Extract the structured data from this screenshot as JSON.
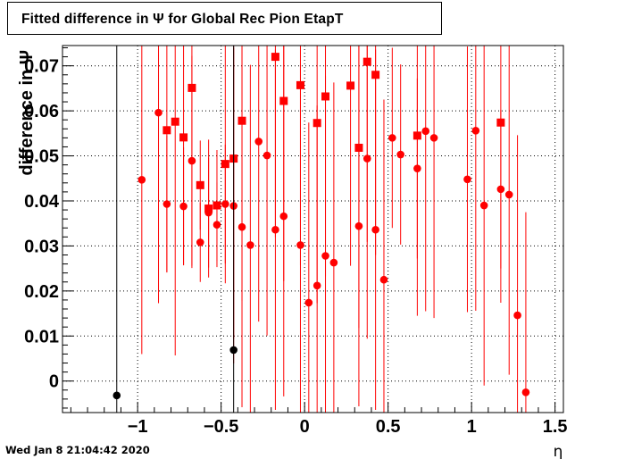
{
  "chart_data": {
    "type": "scatter",
    "title": "Fitted difference in  Ψ  for Global Rec Pion EtapT",
    "xlabel": "η",
    "ylabel": "difference in Ψ",
    "xlim": [
      -1.45,
      1.55
    ],
    "ylim": [
      -0.007,
      0.0745
    ],
    "x_ticks": [
      -1,
      -0.5,
      0,
      0.5,
      1,
      1.5
    ],
    "x_tick_labels": [
      "−1",
      "−0.5",
      "0",
      "0.5",
      "1",
      "1.5"
    ],
    "y_ticks": [
      0,
      0.01,
      0.02,
      0.03,
      0.04,
      0.05,
      0.06,
      0.07
    ],
    "y_tick_labels": [
      "0",
      "0.01",
      "0.02",
      "0.03",
      "0.04",
      "0.05",
      "0.06",
      "0.07"
    ],
    "grid": true,
    "series": [
      {
        "marker": "circle",
        "color": "#ff0000",
        "points": [
          {
            "x": -0.975,
            "y": 0.0447,
            "err": 0.0387
          },
          {
            "x": -0.875,
            "y": 0.0596,
            "err": 0.0423
          },
          {
            "x": -0.825,
            "y": 0.0393,
            "err": 0.0152
          },
          {
            "x": -0.725,
            "y": 0.0388,
            "err": 0.0131
          },
          {
            "x": -0.675,
            "y": 0.0489,
            "err": 0.0233
          },
          {
            "x": -0.625,
            "y": 0.0308,
            "err": 0.0088
          },
          {
            "x": -0.575,
            "y": 0.0374,
            "err": 0.0122
          },
          {
            "x": -0.525,
            "y": 0.0347,
            "err": 0.0094
          },
          {
            "x": -0.475,
            "y": 0.0393,
            "err": 0.0132
          },
          {
            "x": -0.425,
            "y": 0.0389,
            "err": 0.035
          },
          {
            "x": -0.375,
            "y": 0.0342,
            "err": 0.04
          },
          {
            "x": -0.325,
            "y": 0.0302,
            "err": 0.04
          },
          {
            "x": -0.275,
            "y": 0.0532,
            "err": 0.04
          },
          {
            "x": -0.225,
            "y": 0.0501,
            "err": 0.04
          },
          {
            "x": -0.175,
            "y": 0.0336,
            "err": 0.04
          },
          {
            "x": -0.125,
            "y": 0.0366,
            "err": 0.04
          },
          {
            "x": -0.025,
            "y": 0.0302,
            "err": 0.04
          },
          {
            "x": 0.025,
            "y": 0.0174,
            "err": 0.04
          },
          {
            "x": 0.075,
            "y": 0.0212,
            "err": 0.04
          },
          {
            "x": 0.125,
            "y": 0.0278,
            "err": 0.04
          },
          {
            "x": 0.175,
            "y": 0.0263,
            "err": 0.04
          },
          {
            "x": 0.325,
            "y": 0.0344,
            "err": 0.04
          },
          {
            "x": 0.375,
            "y": 0.0494,
            "err": 0.04
          },
          {
            "x": 0.425,
            "y": 0.0336,
            "err": 0.04
          },
          {
            "x": 0.475,
            "y": 0.0225,
            "err": 0.04
          },
          {
            "x": 0.525,
            "y": 0.054,
            "err": 0.02
          },
          {
            "x": 0.575,
            "y": 0.0503,
            "err": 0.02
          },
          {
            "x": 0.675,
            "y": 0.0472,
            "err": 0.02
          },
          {
            "x": 0.725,
            "y": 0.0555,
            "err": 0.04
          },
          {
            "x": 0.775,
            "y": 0.054,
            "err": 0.04
          },
          {
            "x": 0.975,
            "y": 0.0448,
            "err": 0.0295
          },
          {
            "x": 1.025,
            "y": 0.0556,
            "err": 0.04
          },
          {
            "x": 1.075,
            "y": 0.039,
            "err": 0.04
          },
          {
            "x": 1.175,
            "y": 0.0426,
            "err": 0.0176
          },
          {
            "x": 1.225,
            "y": 0.0414,
            "err": 0.04
          },
          {
            "x": 1.275,
            "y": 0.0146,
            "err": 0.04
          },
          {
            "x": 1.325,
            "y": -0.0025,
            "err": 0.04
          }
        ]
      },
      {
        "marker": "square",
        "color": "#ff0000",
        "points": [
          {
            "x": -0.825,
            "y": 0.0557,
            "err": 0.0315
          },
          {
            "x": -0.775,
            "y": 0.0576,
            "err": 0.0519
          },
          {
            "x": -0.725,
            "y": 0.0541,
            "err": 0.0283
          },
          {
            "x": -0.675,
            "y": 0.0651,
            "err": 0.04
          },
          {
            "x": -0.625,
            "y": 0.0435,
            "err": 0.0099
          },
          {
            "x": -0.575,
            "y": 0.0383,
            "err": 0.0153
          },
          {
            "x": -0.525,
            "y": 0.039,
            "err": 0.0123
          },
          {
            "x": -0.475,
            "y": 0.0482,
            "err": 0.0265
          },
          {
            "x": -0.425,
            "y": 0.0494,
            "err": 0.04
          },
          {
            "x": -0.375,
            "y": 0.0578,
            "err": 0.04
          },
          {
            "x": -0.175,
            "y": 0.072,
            "err": 0.04
          },
          {
            "x": -0.125,
            "y": 0.0622,
            "err": 0.04
          },
          {
            "x": -0.025,
            "y": 0.0657,
            "err": 0.04
          },
          {
            "x": 0.075,
            "y": 0.0573,
            "err": 0.04
          },
          {
            "x": 0.125,
            "y": 0.0632,
            "err": 0.04
          },
          {
            "x": 0.275,
            "y": 0.0656,
            "err": 0.04
          },
          {
            "x": 0.325,
            "y": 0.0518,
            "err": 0.04
          },
          {
            "x": 0.375,
            "y": 0.0709,
            "err": 0.04
          },
          {
            "x": 0.425,
            "y": 0.068,
            "err": 0.04
          },
          {
            "x": 0.675,
            "y": 0.0545,
            "err": 0.04
          },
          {
            "x": 1.175,
            "y": 0.0574,
            "err": 0.04
          }
        ]
      },
      {
        "marker": "circle",
        "color": "#000000",
        "points": [
          {
            "x": -1.125,
            "y": -0.0032,
            "err": 0.1
          },
          {
            "x": -0.425,
            "y": 0.0069,
            "err": 0.1
          }
        ]
      }
    ]
  },
  "footer": {
    "timestamp": "Wed Jan  8 21:04:42 2020"
  }
}
